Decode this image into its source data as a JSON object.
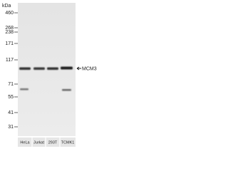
{
  "units": "kDa",
  "markers": [
    460,
    268,
    238,
    171,
    117,
    71,
    55,
    41,
    31
  ],
  "target": "MCM3",
  "lanes": [
    "HeLa",
    "Jurkat",
    "293T",
    "TCMK1"
  ]
}
